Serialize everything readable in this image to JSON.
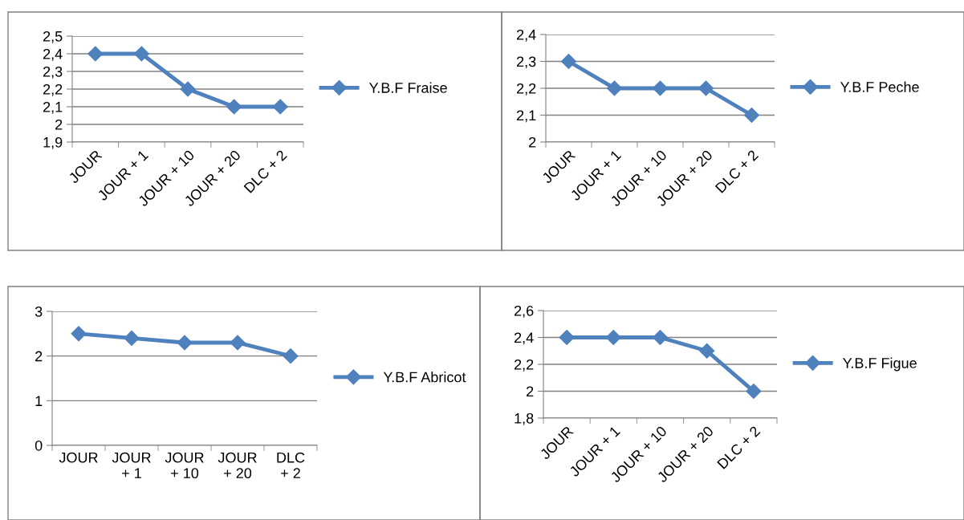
{
  "chart_data": [
    {
      "type": "line",
      "categories": [
        "JOUR",
        "JOUR + 1",
        "JOUR + 10",
        "JOUR + 20",
        "DLC + 2"
      ],
      "series": [
        {
          "name": "Y.B.F Fraise",
          "color": "#4f81bd",
          "values": [
            2.4,
            2.4,
            2.2,
            2.1,
            2.1
          ]
        }
      ],
      "ylim": [
        1.9,
        2.5
      ],
      "yticks": [
        {
          "value": 1.9,
          "label": "1,9"
        },
        {
          "value": 2,
          "label": "2"
        },
        {
          "value": 2.1,
          "label": "2,1"
        },
        {
          "value": 2.2,
          "label": "2,2"
        },
        {
          "value": 2.3,
          "label": "2,3"
        },
        {
          "value": 2.4,
          "label": "2,4"
        },
        {
          "value": 2.5,
          "label": "2,5"
        }
      ],
      "grid": "y",
      "legend": "right",
      "marker": "diamond",
      "line_style": "solid"
    },
    {
      "type": "line",
      "categories": [
        "JOUR",
        "JOUR + 1",
        "JOUR + 10",
        "JOUR + 20",
        "DLC + 2"
      ],
      "series": [
        {
          "name": "Y.B.F Peche",
          "color": "#4f81bd",
          "values": [
            2.3,
            2.2,
            2.2,
            2.2,
            2.1
          ]
        }
      ],
      "ylim": [
        2,
        2.4
      ],
      "yticks": [
        {
          "value": 2,
          "label": "2"
        },
        {
          "value": 2.1,
          "label": "2,1"
        },
        {
          "value": 2.2,
          "label": "2,2"
        },
        {
          "value": 2.3,
          "label": "2,3"
        },
        {
          "value": 2.4,
          "label": "2,4"
        }
      ],
      "grid": "y",
      "legend": "right",
      "marker": "diamond",
      "line_style": "solid"
    },
    {
      "type": "line",
      "categories": [
        "JOUR",
        "JOUR + 1",
        "JOUR + 10",
        "JOUR + 20",
        "DLC + 2"
      ],
      "series": [
        {
          "name": "Y.B.F Abricot",
          "color": "#4f81bd",
          "values": [
            2.5,
            2.4,
            2.3,
            2.3,
            2.0
          ]
        }
      ],
      "ylim": [
        0,
        3
      ],
      "yticks": [
        0,
        1,
        2,
        3
      ],
      "grid": "y",
      "legend": "right",
      "marker": "diamond",
      "line_style": "solid"
    },
    {
      "type": "line",
      "categories": [
        "JOUR",
        "JOUR + 1",
        "JOUR + 10",
        "JOUR + 20",
        "DLC + 2"
      ],
      "series": [
        {
          "name": "Y.B.F Figue",
          "color": "#4f81bd",
          "values": [
            2.4,
            2.4,
            2.4,
            2.3,
            2.0
          ]
        }
      ],
      "ylim": [
        1.8,
        2.6
      ],
      "yticks": [
        {
          "value": 1.8,
          "label": "1,8"
        },
        {
          "value": 2,
          "label": "2"
        },
        {
          "value": 2.2,
          "label": "2,2"
        },
        {
          "value": 2.4,
          "label": "2,4"
        },
        {
          "value": 2.6,
          "label": "2,6"
        }
      ],
      "grid": "y",
      "legend": "right",
      "marker": "diamond",
      "line_style": "solid"
    }
  ]
}
